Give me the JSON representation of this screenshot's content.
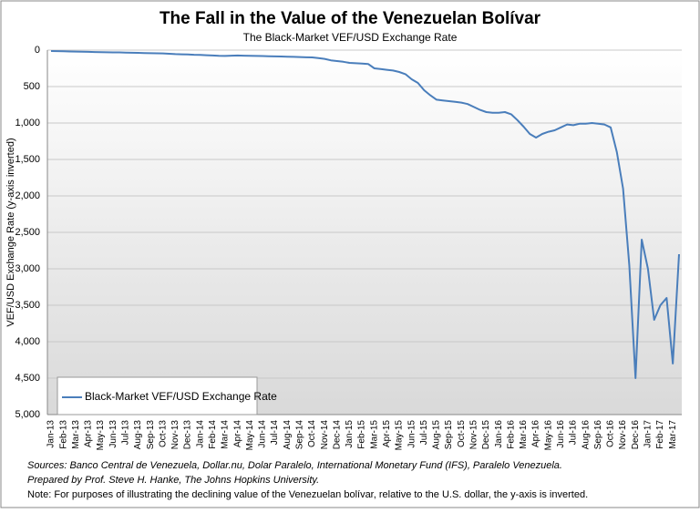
{
  "chart_data": {
    "type": "line",
    "title": "The Fall in the Value of the Venezuelan Bolívar",
    "subtitle": "The Black-Market VEF/USD Exchange Rate",
    "y_label": "VEF/USD Exchange Rate (y-axis inverted)",
    "y_inverted": true,
    "grid": true,
    "legend": "bottom-left",
    "categories": [
      "Jan-13",
      null,
      "Feb-13",
      null,
      "Mar-13",
      null,
      "Apr-13",
      null,
      "May-13",
      null,
      "Jun-13",
      null,
      "Jul-13",
      null,
      "Aug-13",
      null,
      "Sep-13",
      null,
      "Oct-13",
      null,
      "Nov-13",
      null,
      "Dec-13",
      null,
      "Jan-14",
      null,
      "Feb-14",
      null,
      "Mar-14",
      null,
      "Apr-14",
      null,
      "May-14",
      null,
      "Jun-14",
      null,
      "Jul-14",
      null,
      "Aug-14",
      null,
      "Sep-14",
      null,
      "Oct-14",
      null,
      "Nov-14",
      null,
      "Dec-14",
      null,
      "Jan-15",
      null,
      "Feb-15",
      null,
      "Mar-15",
      null,
      "Apr-15",
      null,
      "May-15",
      null,
      "Jun-15",
      null,
      "Jul-15",
      null,
      "Aug-15",
      null,
      "Sep-15",
      null,
      "Oct-15",
      null,
      "Nov-15",
      null,
      "Dec-15",
      null,
      "Jan-16",
      null,
      "Feb-16",
      null,
      "Mar-16",
      null,
      "Apr-16",
      null,
      "May-16",
      null,
      "Jun-16",
      null,
      "Jul-16",
      null,
      "Aug-16",
      null,
      "Sep-16",
      null,
      "Oct-16",
      null,
      "Nov-16",
      null,
      "Dec-16",
      null,
      "Jan-17",
      null,
      "Feb-17",
      null,
      "Mar-17",
      null
    ],
    "series": [
      {
        "name": "Black-Market VEF/USD Exchange Rate",
        "color": "#4a7ebb",
        "values": [
          12,
          14,
          16,
          18,
          20,
          22,
          24,
          26,
          28,
          30,
          32,
          32,
          34,
          36,
          38,
          40,
          42,
          44,
          46,
          50,
          55,
          58,
          60,
          64,
          66,
          70,
          74,
          78,
          80,
          76,
          74,
          76,
          78,
          80,
          82,
          84,
          86,
          88,
          90,
          92,
          95,
          98,
          100,
          110,
          120,
          140,
          150,
          160,
          175,
          180,
          185,
          190,
          250,
          260,
          270,
          280,
          300,
          330,
          400,
          450,
          550,
          620,
          680,
          690,
          700,
          710,
          720,
          740,
          780,
          820,
          850,
          860,
          860,
          850,
          880,
          960,
          1050,
          1150,
          1200,
          1150,
          1120,
          1100,
          1060,
          1020,
          1030,
          1010,
          1010,
          1000,
          1010,
          1020,
          1060,
          1400,
          1900,
          2950,
          4500,
          2600,
          3000,
          3700,
          3500,
          3400,
          4300,
          2800
        ]
      }
    ],
    "ylim": [
      0,
      5000
    ],
    "yticks": [
      0,
      500,
      {
        "value": 1000,
        "label": "1,000"
      },
      {
        "value": 1500,
        "label": "1,500"
      },
      {
        "value": 2000,
        "label": "2,000"
      },
      {
        "value": 2500,
        "label": "2,500"
      },
      {
        "value": 3000,
        "label": "3,000"
      },
      {
        "value": 3500,
        "label": "3,500"
      },
      {
        "value": 4000,
        "label": "4,000"
      },
      {
        "value": 4500,
        "label": "4,500"
      },
      {
        "value": 5000,
        "label": "5,000"
      }
    ],
    "sources": "Sources: Banco Central de Venezuela, Dollar.nu, Dolar Paralelo, International Monetary Fund (IFS), Paralelo Venezuela.",
    "prepared": "Prepared by Prof. Steve H. Hanke, The Johns Hopkins University.",
    "note": "Note: For purposes of illustrating the declining value of the Venezuelan bolívar, relative to the U.S. dollar, the y-axis is inverted."
  }
}
